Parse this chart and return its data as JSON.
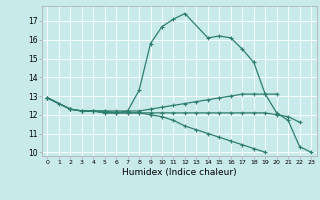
{
  "title": "",
  "xlabel": "Humidex (Indice chaleur)",
  "ylabel": "",
  "xlim": [
    -0.5,
    23.5
  ],
  "ylim": [
    9.8,
    17.8
  ],
  "xticks": [
    0,
    1,
    2,
    3,
    4,
    5,
    6,
    7,
    8,
    9,
    10,
    11,
    12,
    13,
    14,
    15,
    16,
    17,
    18,
    19,
    20,
    21,
    22,
    23
  ],
  "yticks": [
    10,
    11,
    12,
    13,
    14,
    15,
    16,
    17
  ],
  "bg_color": "#c8eaea",
  "grid_color": "#b0d8d8",
  "line_color": "#2e7d70",
  "line1_x": [
    0,
    1,
    2,
    3,
    4,
    5,
    6,
    7,
    8,
    9,
    10,
    11,
    12,
    14,
    15,
    16,
    17,
    18,
    19,
    20,
    21,
    22,
    23
  ],
  "line1_y": [
    12.9,
    12.6,
    12.3,
    12.2,
    12.2,
    12.1,
    12.1,
    12.2,
    13.3,
    15.8,
    16.7,
    17.1,
    17.4,
    16.1,
    16.2,
    16.1,
    15.5,
    14.8,
    13.1,
    12.1,
    11.7,
    10.3,
    10.0
  ],
  "line2_x": [
    0,
    2,
    3,
    4,
    5,
    6,
    7,
    8,
    9,
    10,
    11,
    12,
    13,
    14,
    15,
    16,
    17,
    18,
    19,
    20
  ],
  "line2_y": [
    12.9,
    12.3,
    12.2,
    12.2,
    12.2,
    12.2,
    12.2,
    12.2,
    12.3,
    12.4,
    12.5,
    12.6,
    12.7,
    12.8,
    12.9,
    13.0,
    13.1,
    13.1,
    13.1,
    13.1
  ],
  "line3_x": [
    0,
    2,
    3,
    4,
    5,
    6,
    7,
    8,
    9,
    10,
    11,
    12,
    13,
    14,
    15,
    16,
    17,
    18,
    19,
    20,
    21,
    22
  ],
  "line3_y": [
    12.9,
    12.3,
    12.2,
    12.2,
    12.2,
    12.1,
    12.1,
    12.1,
    12.1,
    12.1,
    12.1,
    12.1,
    12.1,
    12.1,
    12.1,
    12.1,
    12.1,
    12.1,
    12.1,
    12.0,
    11.9,
    11.6
  ],
  "line4_x": [
    0,
    2,
    3,
    4,
    5,
    6,
    7,
    8,
    9,
    10,
    11,
    12,
    13,
    14,
    15,
    16,
    17,
    18,
    19
  ],
  "line4_y": [
    12.9,
    12.3,
    12.2,
    12.2,
    12.1,
    12.1,
    12.1,
    12.1,
    12.0,
    11.9,
    11.7,
    11.4,
    11.2,
    11.0,
    10.8,
    10.6,
    10.4,
    10.2,
    10.0
  ]
}
